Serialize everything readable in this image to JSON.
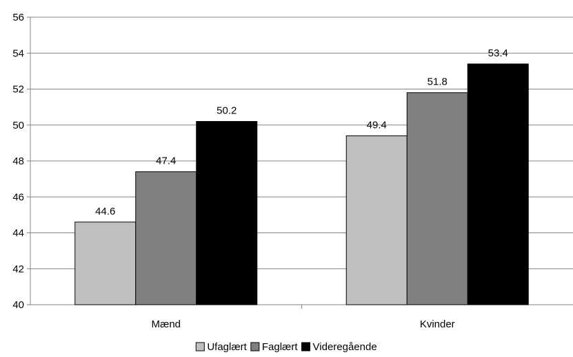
{
  "chart_data": {
    "type": "bar",
    "categories": [
      "Mænd",
      "Kvinder"
    ],
    "series": [
      {
        "name": "Ufaglært",
        "values": [
          44.6,
          49.4
        ],
        "color": "#c0c0c0"
      },
      {
        "name": "Faglært",
        "values": [
          47.4,
          51.8
        ],
        "color": "#808080"
      },
      {
        "name": "Videregående",
        "values": [
          50.2,
          53.4
        ],
        "color": "#000000"
      }
    ],
    "data_labels": [
      [
        "44.6",
        "49.4"
      ],
      [
        "47.4",
        "51.8"
      ],
      [
        "50.2",
        "53.4"
      ]
    ],
    "ylim": [
      40,
      56
    ],
    "yticks": [
      40,
      42,
      44,
      46,
      48,
      50,
      52,
      54,
      56
    ],
    "grid": true,
    "legend": "bottom"
  }
}
